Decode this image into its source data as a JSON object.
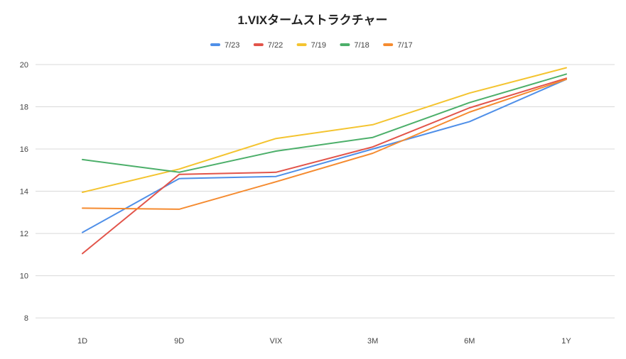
{
  "chart_data": {
    "type": "line",
    "title": "1.VIXタームストラクチャー",
    "xlabel": "",
    "ylabel": "",
    "categories": [
      "1D",
      "9D",
      "VIX",
      "3M",
      "6M",
      "1Y"
    ],
    "ylim": [
      7.5,
      20
    ],
    "yticks": [
      "8",
      "10",
      "12",
      "14",
      "16",
      "18",
      "20"
    ],
    "grid": true,
    "legend_position": "top",
    "series": [
      {
        "name": "7/23",
        "color": "#4f8fe8",
        "values": [
          12.05,
          14.6,
          14.7,
          16.0,
          17.3,
          19.3
        ]
      },
      {
        "name": "7/22",
        "color": "#e2544a",
        "values": [
          11.05,
          14.8,
          14.9,
          16.1,
          17.95,
          19.35
        ]
      },
      {
        "name": "7/19",
        "color": "#f4c430",
        "values": [
          13.95,
          15.05,
          16.5,
          17.15,
          18.65,
          19.85
        ]
      },
      {
        "name": "7/18",
        "color": "#4caf6a",
        "values": [
          15.5,
          14.9,
          15.9,
          16.55,
          18.2,
          19.55
        ]
      },
      {
        "name": "7/17",
        "color": "#f58b30",
        "values": [
          13.2,
          13.15,
          14.45,
          15.8,
          17.75,
          19.3
        ]
      }
    ]
  }
}
